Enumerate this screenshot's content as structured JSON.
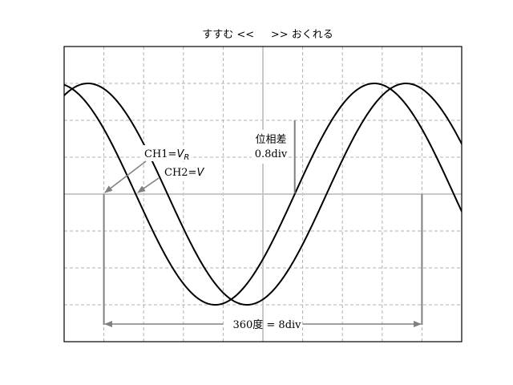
{
  "title": "すすむ <<     >> おくれる",
  "grid": {
    "divisions_x": 10,
    "divisions_y": 8,
    "style": "dashed"
  },
  "channels": [
    {
      "name": "CH1",
      "label_prefix": "CH1=",
      "symbol": "V",
      "subscript": "R"
    },
    {
      "name": "CH2",
      "label_prefix": "CH2=",
      "symbol": "V",
      "subscript": ""
    }
  ],
  "phase_difference": {
    "line1": "位相差",
    "line2": "0.8div",
    "value_div": 0.8
  },
  "period": {
    "label": "360度 = 8div",
    "value_div": 8
  },
  "chart_data": {
    "type": "line",
    "x_range_div": [
      0,
      10
    ],
    "y_range_div": [
      -4,
      4
    ],
    "series": [
      {
        "name": "CH1",
        "period_div": 8,
        "amplitude_div": 3,
        "zero_cross_rising_div": 5.8
      },
      {
        "name": "CH2",
        "period_div": 8,
        "amplitude_div": 3,
        "zero_cross_rising_div": 6.6
      }
    ]
  }
}
